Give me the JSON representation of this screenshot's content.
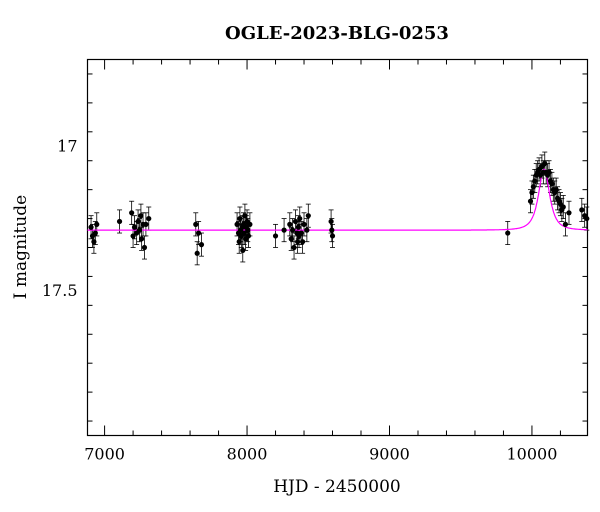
{
  "chart_data": {
    "type": "scatter",
    "title": "OGLE-2023-BLG-0253",
    "xlabel": "HJD - 2450000",
    "ylabel": "I magnitude",
    "xlim": [
      6880,
      10390
    ],
    "ylim": [
      18.0,
      16.7
    ],
    "y_inverted": true,
    "grid": false,
    "x_major_ticks": [
      7000,
      8000,
      9000,
      10000
    ],
    "x_tick_labels": [
      "7000",
      "8000",
      "9000",
      "10000"
    ],
    "y_major_ticks": [
      17.0,
      17.5
    ],
    "y_tick_labels": [
      "17",
      "17.5"
    ],
    "colors": {
      "data": "#000000",
      "model": "#ff00ff",
      "axes": "#000000"
    },
    "model": {
      "name": "",
      "baseline_mag": 17.29,
      "peak_hjd": 10085,
      "peak_mag": 17.08,
      "width_days": 60
    },
    "series": [
      {
        "points": [
          [
            6905,
            17.28
          ],
          [
            6915,
            17.31
          ],
          [
            6925,
            17.33
          ],
          [
            6935,
            17.3
          ],
          [
            6945,
            17.27
          ],
          [
            7105,
            17.26
          ],
          [
            7190,
            17.23
          ],
          [
            7200,
            17.31
          ],
          [
            7210,
            17.28
          ],
          [
            7225,
            17.3
          ],
          [
            7235,
            17.26
          ],
          [
            7245,
            17.29
          ],
          [
            7255,
            17.24
          ],
          [
            7260,
            17.32
          ],
          [
            7270,
            17.27
          ],
          [
            7280,
            17.35
          ],
          [
            7290,
            17.27
          ],
          [
            7310,
            17.25
          ],
          [
            7640,
            17.27
          ],
          [
            7650,
            17.37
          ],
          [
            7660,
            17.3
          ],
          [
            7680,
            17.34
          ],
          [
            7930,
            17.27
          ],
          [
            7940,
            17.3
          ],
          [
            7945,
            17.33
          ],
          [
            7950,
            17.25
          ],
          [
            7955,
            17.29
          ],
          [
            7960,
            17.31
          ],
          [
            7965,
            17.28
          ],
          [
            7970,
            17.36
          ],
          [
            7975,
            17.27
          ],
          [
            7980,
            17.3
          ],
          [
            7985,
            17.24
          ],
          [
            7990,
            17.32
          ],
          [
            7995,
            17.28
          ],
          [
            8000,
            17.26
          ],
          [
            8005,
            17.29
          ],
          [
            8010,
            17.31
          ],
          [
            8020,
            17.27
          ],
          [
            8200,
            17.31
          ],
          [
            8260,
            17.29
          ],
          [
            8300,
            17.27
          ],
          [
            8310,
            17.32
          ],
          [
            8320,
            17.29
          ],
          [
            8330,
            17.35
          ],
          [
            8340,
            17.26
          ],
          [
            8350,
            17.3
          ],
          [
            8355,
            17.33
          ],
          [
            8360,
            17.28
          ],
          [
            8365,
            17.31
          ],
          [
            8370,
            17.25
          ],
          [
            8380,
            17.3
          ],
          [
            8390,
            17.33
          ],
          [
            8400,
            17.27
          ],
          [
            8420,
            17.29
          ],
          [
            8430,
            17.24
          ],
          [
            8590,
            17.26
          ],
          [
            8595,
            17.29
          ],
          [
            8600,
            17.31
          ],
          [
            9830,
            17.3
          ],
          [
            9990,
            17.19
          ],
          [
            10000,
            17.16
          ],
          [
            10010,
            17.14
          ],
          [
            10020,
            17.12
          ],
          [
            10030,
            17.1
          ],
          [
            10040,
            17.09
          ],
          [
            10050,
            17.08
          ],
          [
            10060,
            17.1
          ],
          [
            10070,
            17.07
          ],
          [
            10080,
            17.09
          ],
          [
            10090,
            17.06
          ],
          [
            10100,
            17.09
          ],
          [
            10110,
            17.1
          ],
          [
            10120,
            17.09
          ],
          [
            10130,
            17.12
          ],
          [
            10140,
            17.13
          ],
          [
            10150,
            17.15
          ],
          [
            10160,
            17.16
          ],
          [
            10170,
            17.15
          ],
          [
            10180,
            17.18
          ],
          [
            10190,
            17.19
          ],
          [
            10200,
            17.2
          ],
          [
            10210,
            17.22
          ],
          [
            10220,
            17.21
          ],
          [
            10235,
            17.27
          ],
          [
            10260,
            17.23
          ],
          [
            10350,
            17.22
          ],
          [
            10370,
            17.24
          ],
          [
            10385,
            17.25
          ]
        ],
        "error": 0.04
      }
    ]
  }
}
